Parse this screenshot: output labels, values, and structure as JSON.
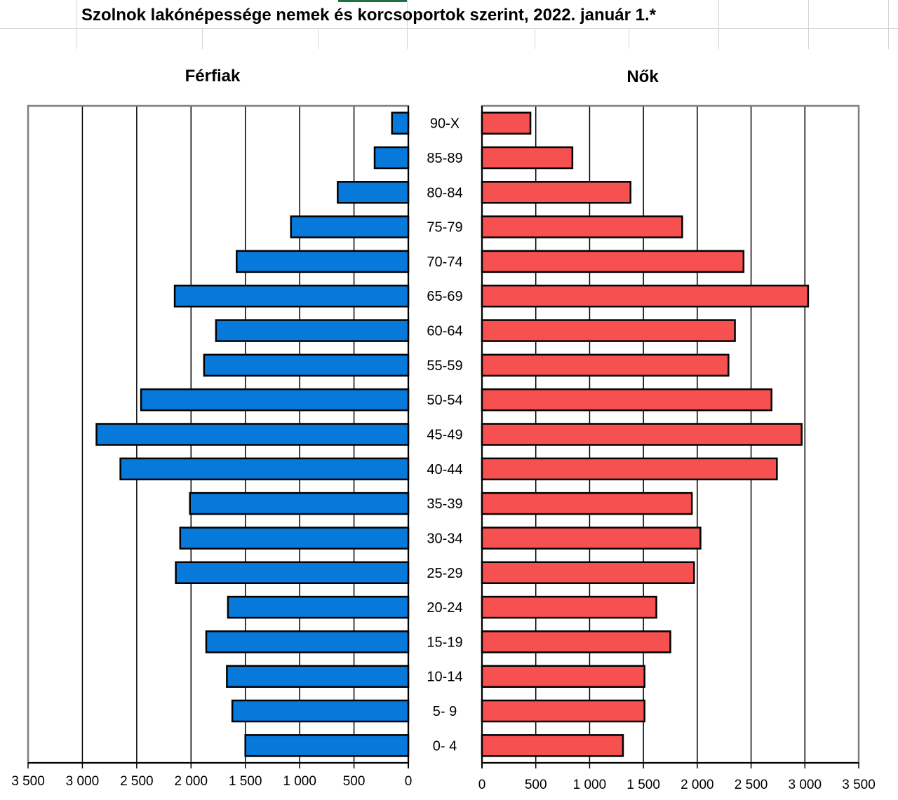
{
  "title": "Szolnok lakónépessége nemek és korcsoportok szerint, 2022. január 1.*",
  "colors": {
    "male": "#0779DA",
    "female": "#F75050",
    "border": "#000000",
    "grid": "#000000",
    "frame": "#7f7f7f",
    "sheet_grid": "#d4d4d4",
    "selected_cell": "#1e7145"
  },
  "chart_data": [
    {
      "type": "bar",
      "orientation": "horizontal",
      "title": "Férfiak",
      "direction": "reversed",
      "categories": [
        "90-X",
        "85-89",
        "80-84",
        "75-79",
        "70-74",
        "65-69",
        "60-64",
        "55-59",
        "50-54",
        "45-49",
        "40-44",
        "35-39",
        "30-34",
        "25-29",
        "20-24",
        "15-19",
        "10-14",
        "5-  9",
        "0-  4"
      ],
      "values": [
        150,
        310,
        650,
        1080,
        1580,
        2150,
        1770,
        1880,
        2460,
        2870,
        2650,
        2010,
        2100,
        2140,
        1660,
        1860,
        1670,
        1620,
        1500
      ],
      "xlim": [
        0,
        3500
      ],
      "ticks": [
        3500,
        3000,
        2500,
        2000,
        1500,
        1000,
        500,
        0
      ],
      "tick_labels": [
        "3 500",
        "3 000",
        "2 500",
        "2 000",
        "1 500",
        "1 000",
        "500",
        "0"
      ],
      "grid": true
    },
    {
      "type": "bar",
      "orientation": "horizontal",
      "title": "Nők",
      "categories": [
        "90-X",
        "85-89",
        "80-84",
        "75-79",
        "70-74",
        "65-69",
        "60-64",
        "55-59",
        "50-54",
        "45-49",
        "40-44",
        "35-39",
        "30-34",
        "25-29",
        "20-24",
        "15-19",
        "10-14",
        "5-  9",
        "0-  4"
      ],
      "values": [
        450,
        840,
        1380,
        1860,
        2430,
        3030,
        2350,
        2290,
        2690,
        2970,
        2740,
        1950,
        2030,
        1970,
        1620,
        1750,
        1510,
        1510,
        1310
      ],
      "xlim": [
        0,
        3500
      ],
      "ticks": [
        0,
        500,
        1000,
        1500,
        2000,
        2500,
        3000,
        3500
      ],
      "tick_labels": [
        "0",
        "500",
        "1 000",
        "1 500",
        "2 000",
        "2 500",
        "3 000",
        "3 500"
      ],
      "grid": true
    }
  ]
}
